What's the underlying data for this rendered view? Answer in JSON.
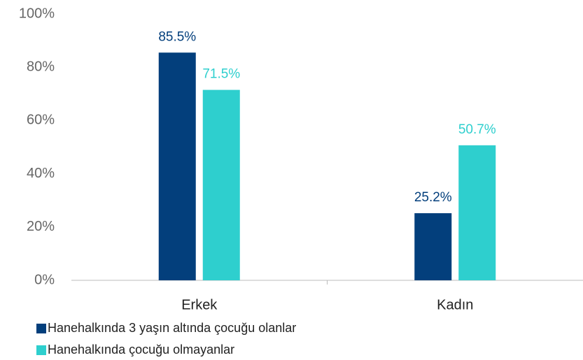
{
  "chart_data": {
    "type": "bar",
    "categories": [
      "Erkek",
      "Kadın"
    ],
    "series": [
      {
        "name": "Hanehalkında 3 yaşın altında çocuğu olanlar",
        "color": "#033f7c",
        "values": [
          85.5,
          25.2
        ],
        "value_labels": [
          "85.5%",
          "25.2%"
        ]
      },
      {
        "name": "Hanehalkında çocuğu olmayanlar",
        "color": "#2ecfce",
        "values": [
          71.5,
          50.7
        ],
        "value_labels": [
          "71.5%",
          "50.7%"
        ]
      }
    ],
    "ylim": [
      0,
      100
    ],
    "yticks": [
      {
        "value": 0,
        "label": "0%"
      },
      {
        "value": 20,
        "label": "20%"
      },
      {
        "value": 40,
        "label": "40%"
      },
      {
        "value": 60,
        "label": "60%"
      },
      {
        "value": 80,
        "label": "80%"
      },
      {
        "value": 100,
        "label": "100%"
      }
    ],
    "grid": false,
    "legend": "bottom-left"
  }
}
